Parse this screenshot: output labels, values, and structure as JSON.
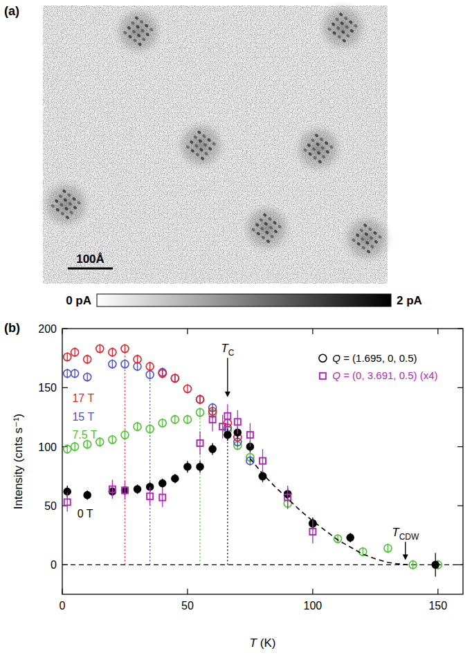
{
  "panel_a": {
    "label": "(a)",
    "image": {
      "width": 766,
      "height": 618,
      "vortices": [
        [
          212,
          57
        ],
        [
          666,
          49
        ],
        [
          351,
          311
        ],
        [
          612,
          318
        ],
        [
          51,
          442
        ],
        [
          497,
          495
        ],
        [
          720,
          518
        ]
      ]
    },
    "scale_bar": {
      "label": "100Å",
      "length": 100
    },
    "colorbar": {
      "range": [
        0,
        2
      ],
      "ticks": [
        {
          "value": 0,
          "label": "0 pA"
        },
        {
          "value": 2,
          "label": "2 pA"
        }
      ]
    }
  },
  "chart_data": {
    "type": "scatter",
    "panel_label": "(b)",
    "xlabel": "T (K)",
    "ylabel": "Intensity (cnts s⁻¹)",
    "xlim": [
      0,
      160
    ],
    "ylim": [
      -25,
      200
    ],
    "xticks": [
      0,
      50,
      100,
      150
    ],
    "yticks": [
      0,
      50,
      100,
      150,
      200
    ],
    "legend": "upper right",
    "legend_items": [
      {
        "label": "Q = (1.695, 0, 0.5)",
        "marker": "open_circle",
        "color": "#000000"
      },
      {
        "label": "Q = (0, 3.691, 0.5) (x4)",
        "marker": "open_square",
        "color": "#b22ab8"
      }
    ],
    "series": [
      {
        "name": "17 T",
        "color": "#e41e26",
        "marker": "open_circle",
        "x": [
          2,
          5,
          10,
          15,
          20,
          25,
          30,
          35,
          40,
          45,
          50,
          55,
          60,
          66,
          70
        ],
        "values": [
          176,
          180,
          174,
          183,
          180,
          183,
          174,
          168,
          162,
          158,
          149,
          140,
          130,
          120,
          108
        ],
        "errors": [
          4,
          4,
          4,
          4,
          4,
          4,
          4,
          4,
          4,
          4,
          4,
          4,
          4,
          4,
          4
        ]
      },
      {
        "name": "15 T",
        "color": "#4b50c8",
        "marker": "open_circle",
        "x": [
          2,
          5,
          10,
          20,
          25,
          30,
          35,
          40,
          45,
          55,
          60,
          66,
          70,
          75
        ],
        "values": [
          162,
          162,
          159,
          170,
          170,
          168,
          161,
          163,
          158,
          140,
          133,
          116,
          104,
          88
        ],
        "errors": [
          4,
          4,
          4,
          4,
          4,
          4,
          4,
          4,
          4,
          4,
          4,
          4,
          4,
          4
        ]
      },
      {
        "name": "7.5 T",
        "color": "#48c22a",
        "marker": "open_circle",
        "x": [
          2,
          5,
          10,
          15,
          20,
          25,
          30,
          35,
          40,
          45,
          50,
          55,
          60,
          66,
          70,
          75,
          80,
          90,
          100,
          110,
          120,
          130,
          140,
          150
        ],
        "values": [
          98,
          100,
          102,
          104,
          106,
          110,
          117,
          115,
          120,
          123,
          123,
          129,
          128,
          114,
          101,
          91,
          75,
          52,
          35,
          22,
          11,
          14,
          0,
          0
        ],
        "errors": [
          4,
          4,
          4,
          4,
          4,
          4,
          4,
          4,
          4,
          4,
          4,
          4,
          4,
          4,
          4,
          4,
          4,
          4,
          4,
          4,
          4,
          4,
          4,
          4
        ]
      },
      {
        "name": "0 T",
        "color": "#000000",
        "marker": "circle",
        "x": [
          2,
          10,
          20,
          25,
          30,
          35,
          40,
          45,
          50,
          55,
          60,
          66,
          70,
          75,
          80,
          90,
          100,
          115,
          149
        ],
        "values": [
          62,
          59,
          62,
          63,
          64,
          66,
          69,
          73,
          83,
          83,
          98,
          110,
          112,
          100,
          75,
          60,
          35,
          23,
          0
        ],
        "errors": [
          5,
          4,
          4,
          4,
          4,
          4,
          4,
          4,
          5,
          5,
          5,
          5,
          5,
          5,
          5,
          5,
          5,
          4,
          10
        ]
      },
      {
        "color": "#b22ab8",
        "marker": "open_square",
        "x": [
          2,
          20,
          25,
          35,
          40,
          55,
          60,
          64,
          66,
          70,
          75,
          80,
          90,
          100
        ],
        "values": [
          53,
          64,
          63,
          58,
          57,
          103,
          123,
          117,
          126,
          121,
          110,
          88,
          57,
          28
        ],
        "errors": [
          8,
          8,
          8,
          8,
          8,
          10,
          10,
          10,
          10,
          10,
          10,
          10,
          10,
          10
        ]
      },
      {
        "type": "line",
        "color": "#000000",
        "line_style": "dashed",
        "x": [
          75,
          80,
          85,
          90,
          95,
          100,
          105,
          110,
          115,
          120,
          125,
          130,
          135,
          138
        ],
        "values": [
          90,
          77,
          66,
          56,
          46,
          37,
          29,
          21,
          15,
          9,
          5,
          2,
          0.5,
          0
        ]
      }
    ],
    "tc_lines": [
      {
        "x": 25,
        "color": "#e41e26"
      },
      {
        "x": 35,
        "color": "#4b50c8"
      },
      {
        "x": 55,
        "color": "#48c22a"
      },
      {
        "x": 66,
        "color": "#000000"
      }
    ],
    "hline": {
      "y": 0,
      "line_style": "dashed"
    },
    "annotations": [
      {
        "text": "T",
        "sub": "C",
        "x": 66
      },
      {
        "text": "T",
        "sub": "CDW",
        "x": 137
      }
    ]
  }
}
